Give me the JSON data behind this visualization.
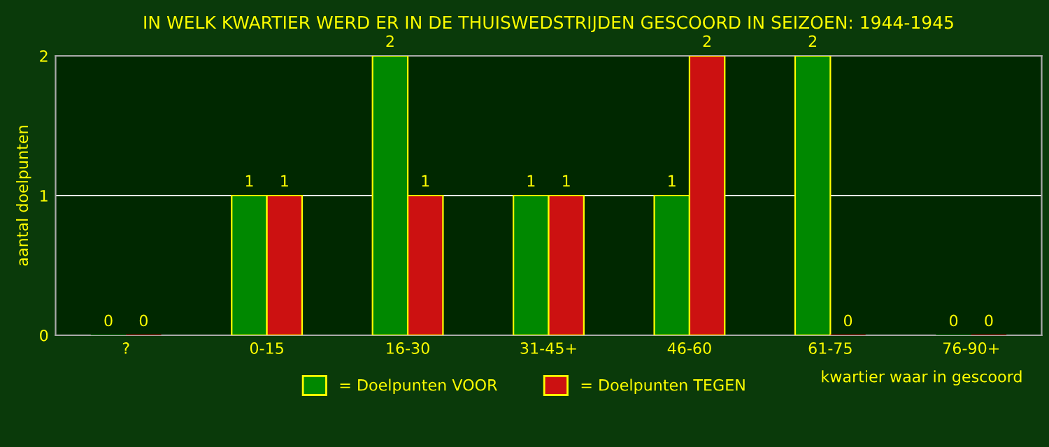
{
  "chart_data": {
    "type": "bar",
    "title": "IN WELK KWARTIER WERD ER IN DE THUISWEDSTRIJDEN GESCOORD IN SEIZOEN: 1944-1945",
    "xlabel": "kwartier waar in gescoord",
    "ylabel": "aantal doelpunten",
    "categories": [
      "?",
      "0-15",
      "16-30",
      "31-45+",
      "46-60",
      "61-75",
      "76-90+"
    ],
    "series": [
      {
        "name": "= Doelpunten VOOR",
        "color": "#008800",
        "values": [
          0,
          1,
          2,
          1,
          1,
          2,
          0
        ]
      },
      {
        "name": "= Doelpunten TEGEN",
        "color": "#cc1111",
        "values": [
          0,
          1,
          1,
          1,
          2,
          0,
          0
        ]
      }
    ],
    "ylim": [
      0,
      2
    ],
    "yticks": [
      0,
      1,
      2
    ],
    "grid": "y",
    "legend": "bottom",
    "data_labels": true
  }
}
